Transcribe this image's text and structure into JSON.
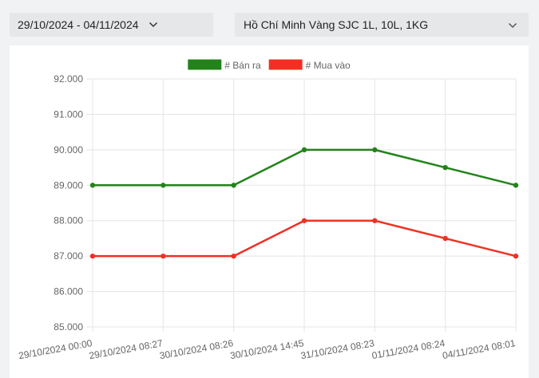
{
  "toolbar": {
    "date_range_label": "29/10/2024 - 04/11/2024",
    "location_label": "Hồ Chí Minh Vàng SJC 1L, 10L, 1KG"
  },
  "icons": {
    "date_dropdown": "chevron-down-icon",
    "location_dropdown": "chevron-down-icon"
  },
  "colors": {
    "sell": "#23831a",
    "buy": "#ef3124",
    "grid": "#e5e5e5",
    "axis_text": "#666666"
  },
  "chart_data": {
    "type": "line",
    "categories": [
      "29/10/2024 00:00",
      "29/10/2024 08:27",
      "30/10/2024 08:26",
      "30/10/2024 14:45",
      "31/10/2024 08:23",
      "01/11/2024 08:24",
      "04/11/2024 08:01"
    ],
    "series": [
      {
        "name": "# Bán ra",
        "color": "#23831a",
        "values": [
          89000,
          89000,
          89000,
          90000,
          90000,
          89500,
          89000
        ]
      },
      {
        "name": "# Mua vào",
        "color": "#ef3124",
        "values": [
          87000,
          87000,
          87000,
          88000,
          88000,
          87500,
          87000
        ]
      }
    ],
    "y_ticks": [
      "92.000",
      "91.000",
      "90.000",
      "89.000",
      "88.000",
      "87.000",
      "86.000",
      "85.000"
    ],
    "ylim": [
      85000,
      92000
    ],
    "grid": true,
    "legend_position": "top-center",
    "title": "",
    "xlabel": "",
    "ylabel": ""
  }
}
